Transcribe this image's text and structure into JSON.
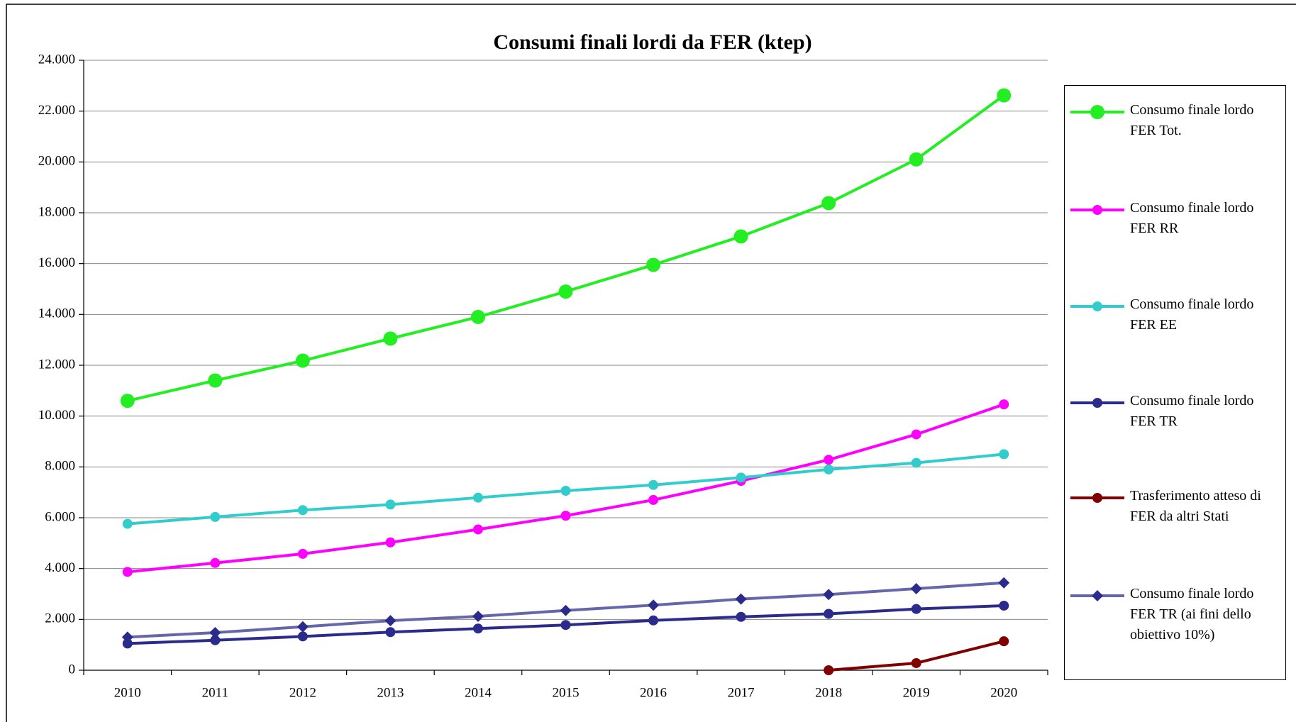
{
  "chart_data": {
    "type": "line",
    "title": "Consumi finali lordi da FER (ktep)",
    "categories": [
      "2010",
      "2011",
      "2012",
      "2013",
      "2014",
      "2015",
      "2016",
      "2017",
      "2018",
      "2019",
      "2020"
    ],
    "series": [
      {
        "name": "Consumo finale lordo FER Tot.",
        "color": "#22ee22",
        "marker": "circle",
        "marker_size": 10,
        "values": [
          10600,
          11400,
          12180,
          13050,
          13900,
          14900,
          15950,
          17070,
          18380,
          20100,
          22620
        ]
      },
      {
        "name": "Consumo finale lordo FER RR",
        "color": "#ff00ff",
        "marker": "circle",
        "marker_size": 7,
        "values": [
          3870,
          4220,
          4580,
          5030,
          5540,
          6080,
          6700,
          7450,
          8280,
          9280,
          10460
        ]
      },
      {
        "name": "Consumo finale lordo FER EE",
        "color": "#33cccc",
        "marker": "circle",
        "marker_size": 7,
        "values": [
          5760,
          6030,
          6300,
          6520,
          6790,
          7060,
          7290,
          7580,
          7900,
          8160,
          8500
        ]
      },
      {
        "name": "Consumo finale lordo FER TR",
        "color": "#2b2b8c",
        "marker": "circle",
        "marker_size": 7,
        "values": [
          1050,
          1180,
          1330,
          1500,
          1640,
          1780,
          1960,
          2100,
          2220,
          2410,
          2540
        ]
      },
      {
        "name": "Trasferimento atteso di FER da altri Stati",
        "color": "#800000",
        "marker": "circle",
        "marker_size": 7,
        "values": [
          null,
          null,
          null,
          null,
          null,
          null,
          null,
          null,
          0,
          280,
          1140
        ]
      },
      {
        "name": "Consumo finale lordo FER TR (ai fini dello obiettivo 10%)",
        "color": "#6666aa",
        "marker_color": "#2b2b8c",
        "marker": "diamond",
        "marker_size": 8,
        "values": [
          1300,
          1480,
          1710,
          1950,
          2120,
          2350,
          2560,
          2800,
          2980,
          3210,
          3440
        ]
      }
    ],
    "ylim": [
      0,
      24000
    ],
    "yticks": [
      0,
      {
        "value": 2000,
        "label": "2.000"
      },
      {
        "value": 4000,
        "label": "4.000"
      },
      {
        "value": 6000,
        "label": "6.000"
      },
      {
        "value": 8000,
        "label": "8.000"
      },
      {
        "value": 10000,
        "label": "10.000"
      },
      {
        "value": 12000,
        "label": "12.000"
      },
      {
        "value": 14000,
        "label": "14.000"
      },
      {
        "value": 16000,
        "label": "16.000"
      },
      {
        "value": 18000,
        "label": "18.000"
      },
      {
        "value": 20000,
        "label": "20.000"
      },
      {
        "value": 22000,
        "label": "22.000"
      },
      {
        "value": 24000,
        "label": "24.000"
      }
    ],
    "grid": true,
    "legend": "right"
  }
}
